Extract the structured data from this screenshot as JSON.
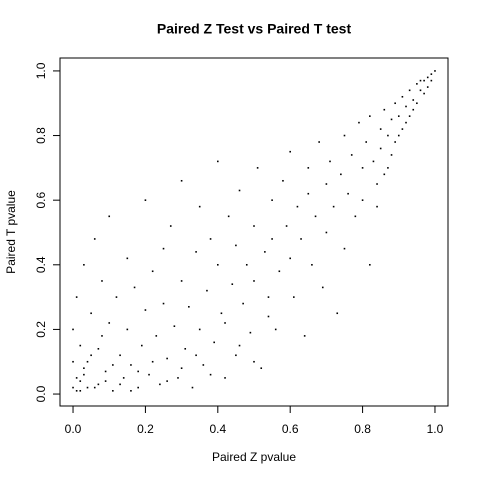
{
  "chart_data": {
    "type": "scatter",
    "title": "Paired Z Test vs Paired T test",
    "xlabel": "Paired Z pvalue",
    "ylabel": "Paired T pvalue",
    "color": "#000000",
    "xlim": [
      -0.036,
      1.036
    ],
    "ylim": [
      -0.037,
      1.04
    ],
    "xticks": [
      {
        "value": 0,
        "label": "0.0"
      },
      0.2,
      0.4,
      0.6,
      0.8,
      {
        "value": 1,
        "label": "1.0"
      }
    ],
    "yticks": [
      {
        "value": 0,
        "label": "0.0"
      },
      0.2,
      0.4,
      0.6,
      0.8,
      {
        "value": 1,
        "label": "1.0"
      }
    ],
    "x": [
      0.0,
      0.0,
      0.01,
      0.0,
      0.01,
      0.02,
      0.02,
      0.03,
      0.03,
      0.04,
      0.05,
      0.05,
      0.06,
      0.07,
      0.08,
      0.08,
      0.09,
      0.1,
      0.1,
      0.11,
      0.12,
      0.13,
      0.14,
      0.15,
      0.15,
      0.16,
      0.17,
      0.18,
      0.19,
      0.2,
      0.2,
      0.21,
      0.22,
      0.23,
      0.24,
      0.25,
      0.25,
      0.26,
      0.27,
      0.28,
      0.29,
      0.3,
      0.3,
      0.31,
      0.32,
      0.33,
      0.34,
      0.35,
      0.35,
      0.36,
      0.37,
      0.38,
      0.39,
      0.4,
      0.4,
      0.41,
      0.42,
      0.43,
      0.44,
      0.45,
      0.45,
      0.46,
      0.47,
      0.48,
      0.49,
      0.5,
      0.5,
      0.51,
      0.52,
      0.53,
      0.54,
      0.55,
      0.55,
      0.56,
      0.57,
      0.58,
      0.59,
      0.6,
      0.6,
      0.61,
      0.62,
      0.63,
      0.64,
      0.65,
      0.65,
      0.66,
      0.67,
      0.68,
      0.69,
      0.7,
      0.7,
      0.71,
      0.72,
      0.73,
      0.74,
      0.75,
      0.75,
      0.76,
      0.77,
      0.78,
      0.79,
      0.8,
      0.8,
      0.81,
      0.82,
      0.82,
      0.83,
      0.84,
      0.85,
      0.85,
      0.86,
      0.87,
      0.87,
      0.88,
      0.89,
      0.89,
      0.9,
      0.91,
      0.91,
      0.92,
      0.93,
      0.93,
      0.94,
      0.95,
      0.95,
      0.96,
      0.97,
      0.97,
      0.98,
      0.99,
      1.0,
      0.99,
      0.98,
      0.96,
      0.94,
      0.92,
      0.9,
      0.88,
      0.86,
      0.84,
      0.02,
      0.01,
      0.03,
      0.04,
      0.06,
      0.07,
      0.09,
      0.11,
      0.13,
      0.16,
      0.18,
      0.22,
      0.26,
      0.3,
      0.34,
      0.38,
      0.42,
      0.46,
      0.5,
      0.54
    ],
    "values": [
      0.02,
      0.1,
      0.05,
      0.2,
      0.3,
      0.01,
      0.15,
      0.4,
      0.08,
      0.02,
      0.25,
      0.12,
      0.48,
      0.03,
      0.18,
      0.35,
      0.07,
      0.55,
      0.22,
      0.01,
      0.3,
      0.12,
      0.05,
      0.42,
      0.2,
      0.09,
      0.33,
      0.02,
      0.15,
      0.6,
      0.26,
      0.06,
      0.38,
      0.18,
      0.03,
      0.45,
      0.28,
      0.11,
      0.52,
      0.21,
      0.05,
      0.35,
      0.66,
      0.14,
      0.27,
      0.02,
      0.44,
      0.2,
      0.58,
      0.09,
      0.32,
      0.48,
      0.16,
      0.4,
      0.72,
      0.25,
      0.05,
      0.55,
      0.34,
      0.12,
      0.46,
      0.63,
      0.28,
      0.4,
      0.19,
      0.52,
      0.35,
      0.7,
      0.08,
      0.44,
      0.3,
      0.6,
      0.48,
      0.2,
      0.38,
      0.66,
      0.52,
      0.42,
      0.75,
      0.3,
      0.58,
      0.48,
      0.18,
      0.62,
      0.7,
      0.4,
      0.55,
      0.78,
      0.33,
      0.65,
      0.5,
      0.72,
      0.58,
      0.25,
      0.68,
      0.8,
      0.45,
      0.62,
      0.74,
      0.55,
      0.84,
      0.7,
      0.6,
      0.78,
      0.4,
      0.86,
      0.72,
      0.65,
      0.82,
      0.76,
      0.88,
      0.7,
      0.8,
      0.85,
      0.9,
      0.78,
      0.86,
      0.92,
      0.82,
      0.89,
      0.94,
      0.86,
      0.91,
      0.96,
      0.9,
      0.94,
      0.97,
      0.93,
      0.98,
      0.99,
      1.0,
      0.97,
      0.95,
      0.97,
      0.88,
      0.84,
      0.8,
      0.74,
      0.68,
      0.58,
      0.04,
      0.01,
      0.06,
      0.1,
      0.02,
      0.14,
      0.04,
      0.09,
      0.03,
      0.01,
      0.07,
      0.1,
      0.04,
      0.08,
      0.12,
      0.06,
      0.22,
      0.15,
      0.1,
      0.24
    ]
  }
}
